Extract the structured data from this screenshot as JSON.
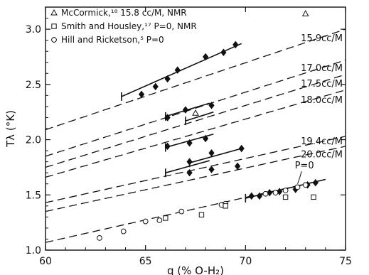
{
  "chart_data": {
    "type": "scatter",
    "xlabel": "q (% O-H₂)",
    "ylabel": "Tλ (°K)",
    "xlim": [
      60,
      75
    ],
    "ylim": [
      1.0,
      3.2
    ],
    "xticks": [
      "60",
      "65",
      "70",
      "75"
    ],
    "yticks": [
      "1.0",
      "1.5",
      "2.0",
      "2.5",
      "3.0"
    ],
    "legend_position": "top-left",
    "legend": [
      {
        "marker": "triangle",
        "label": "McCormick,¹⁸ 15.8 cc/M, NMR"
      },
      {
        "marker": "square",
        "label": "Smith and Housley,¹⁷ P=0, NMR"
      },
      {
        "marker": "circle",
        "label": "Hill and Ricketson,⁵ P=0"
      }
    ],
    "curves": [
      {
        "label": "15.9cc/M",
        "dashed_x": [
          60,
          75
        ],
        "dashed_y": [
          2.09,
          3.0
        ],
        "solid_x": [
          63.8,
          69.8
        ],
        "solid_y": [
          2.39,
          2.87
        ]
      },
      {
        "label": "17.0cc/M",
        "dashed_x": [
          60,
          75
        ],
        "dashed_y": [
          1.85,
          2.72
        ],
        "solid_x": [
          66.0,
          68.2
        ],
        "solid_y": [
          2.21,
          2.33
        ]
      },
      {
        "label": "17.5cc/M",
        "dashed_x": [
          60,
          75
        ],
        "dashed_y": [
          1.75,
          2.59
        ],
        "solid_x": [
          67.0,
          68.4
        ],
        "solid_y": [
          2.17,
          2.25
        ]
      },
      {
        "label": "18.0cc/M",
        "dashed_x": [
          60,
          75
        ],
        "dashed_y": [
          1.66,
          2.45
        ],
        "solid_x": [
          66.0,
          68.4
        ],
        "solid_y": [
          1.93,
          2.05
        ]
      },
      {
        "label": "19.4cc/M",
        "dashed_x": [
          60,
          75
        ],
        "dashed_y": [
          1.43,
          2.03
        ],
        "solid_x": [
          67.2,
          69.8
        ],
        "solid_y": [
          1.79,
          1.92
        ]
      },
      {
        "label": "20.0cc/M",
        "dashed_x": [
          60,
          75
        ],
        "dashed_y": [
          1.35,
          1.94
        ],
        "solid_x": [
          66.0,
          68.2
        ],
        "solid_y": [
          1.7,
          1.81
        ]
      },
      {
        "label": "P=0",
        "dashed_x": [
          60,
          74
        ],
        "dashed_y": [
          1.07,
          1.64
        ],
        "solid_x": [
          70.0,
          74.0
        ],
        "solid_y": [
          1.47,
          1.64
        ]
      }
    ],
    "series": [
      {
        "marker": "diamond_filled",
        "points": [
          [
            64.8,
            2.41
          ],
          [
            65.5,
            2.48
          ],
          [
            66.1,
            2.55
          ],
          [
            66.6,
            2.63
          ],
          [
            68.0,
            2.75
          ],
          [
            68.9,
            2.79
          ],
          [
            69.5,
            2.86
          ],
          [
            66.1,
            2.2
          ],
          [
            67.0,
            2.27
          ],
          [
            68.3,
            2.31
          ],
          [
            66.1,
            1.94
          ],
          [
            67.2,
            1.97
          ],
          [
            68.0,
            2.01
          ],
          [
            67.2,
            1.8
          ],
          [
            68.3,
            1.88
          ],
          [
            69.8,
            1.92
          ],
          [
            67.2,
            1.7
          ],
          [
            68.3,
            1.73
          ],
          [
            69.6,
            1.76
          ],
          [
            70.3,
            1.49
          ],
          [
            70.7,
            1.49
          ],
          [
            71.2,
            1.52
          ],
          [
            71.7,
            1.53
          ],
          [
            72.5,
            1.55
          ],
          [
            73.1,
            1.59
          ],
          [
            73.5,
            1.61
          ]
        ]
      },
      {
        "marker": "circle_open",
        "points": [
          [
            62.7,
            1.11
          ],
          [
            63.9,
            1.17
          ],
          [
            65.0,
            1.26
          ],
          [
            65.7,
            1.27
          ],
          [
            66.8,
            1.35
          ],
          [
            68.8,
            1.41
          ],
          [
            69.0,
            1.42
          ],
          [
            71.0,
            1.51
          ],
          [
            71.5,
            1.52
          ],
          [
            72.0,
            1.54
          ],
          [
            72.6,
            1.57
          ],
          [
            73.0,
            1.59
          ]
        ]
      },
      {
        "marker": "square_open",
        "points": [
          [
            66.0,
            1.29
          ],
          [
            67.8,
            1.32
          ],
          [
            69.0,
            1.4
          ],
          [
            72.0,
            1.48
          ],
          [
            73.4,
            1.48
          ]
        ]
      },
      {
        "marker": "triangle_open",
        "points": [
          [
            67.5,
            2.24
          ],
          [
            73.0,
            3.14
          ]
        ]
      }
    ]
  }
}
